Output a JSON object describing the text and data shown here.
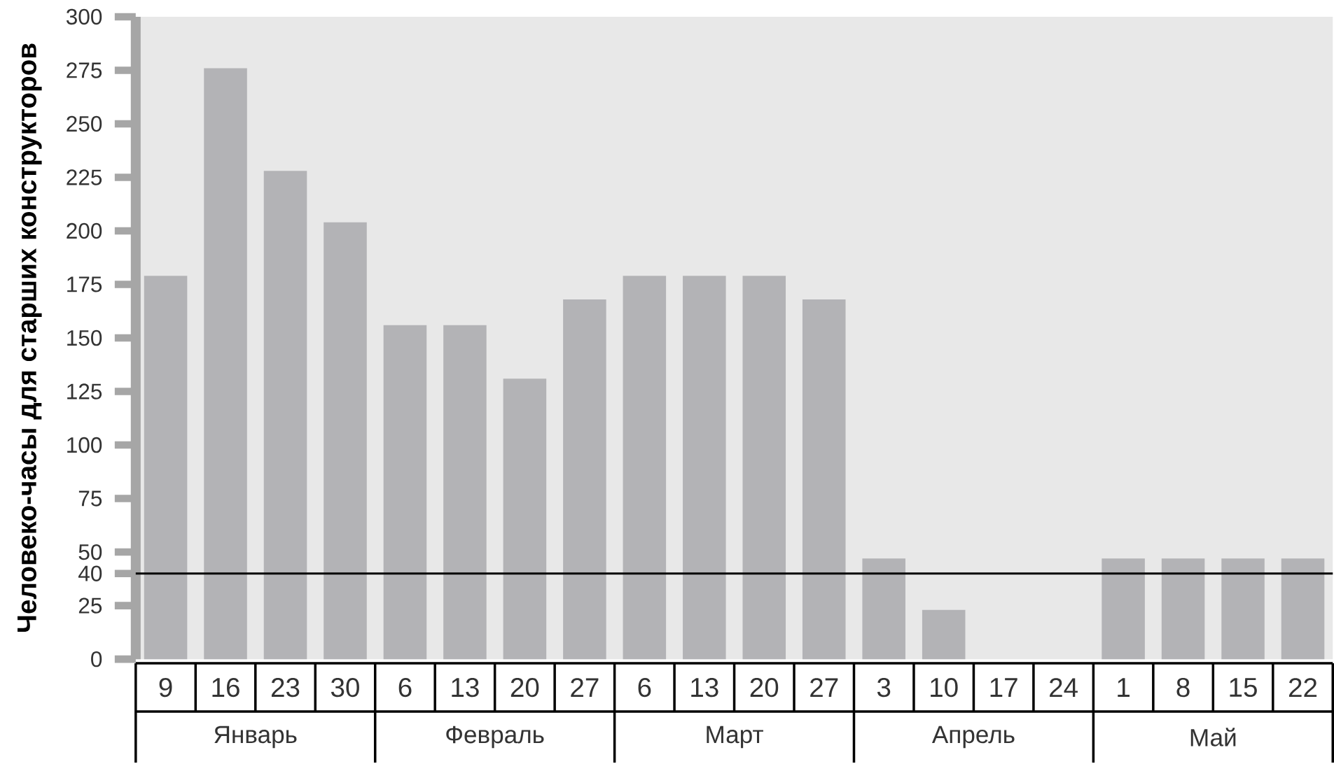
{
  "chart_data": {
    "type": "bar",
    "ylabel": "Человеко-часы для старших конструкторов",
    "categories": [
      "9",
      "16",
      "23",
      "30",
      "6",
      "13",
      "20",
      "27",
      "6",
      "13",
      "20",
      "27",
      "3",
      "10",
      "17",
      "24",
      "1",
      "8",
      "15",
      "22"
    ],
    "values": [
      179,
      276,
      228,
      204,
      156,
      156,
      131,
      168,
      179,
      179,
      179,
      168,
      47,
      23,
      0,
      0,
      47,
      47,
      47,
      47
    ],
    "color": "#b3b3b6",
    "ylim": [
      0,
      300
    ],
    "yticks": [
      0,
      25,
      40,
      50,
      75,
      100,
      125,
      150,
      175,
      200,
      225,
      250,
      275,
      300
    ],
    "ref_lines": [
      {
        "axis": "y",
        "value": 40,
        "color": "#000000"
      }
    ],
    "annotations": [
      "Январь",
      "Февраль",
      "Март",
      "Апрель",
      "Май"
    ],
    "grid": false
  }
}
